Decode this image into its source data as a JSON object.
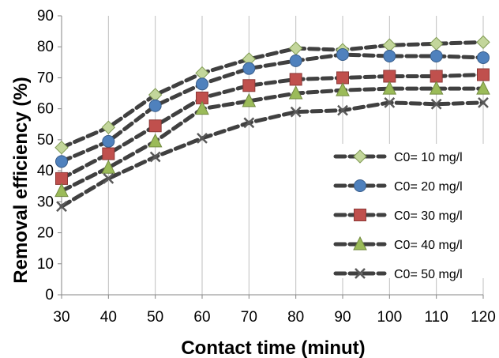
{
  "chart_data": {
    "type": "line",
    "xlabel": "Contact time (minut)",
    "ylabel": "Removal efficiency (%)",
    "x": [
      30,
      40,
      50,
      60,
      70,
      80,
      90,
      100,
      110,
      120
    ],
    "xlim": [
      30,
      120
    ],
    "ylim": [
      0,
      90
    ],
    "y_ticks": [
      0,
      10,
      20,
      30,
      40,
      50,
      60,
      70,
      80,
      90
    ],
    "grid": "vertical",
    "legend_position": "right",
    "series": [
      {
        "name": "C0= 10 mg/l",
        "marker": "diamond",
        "marker_color": "#c3d69b",
        "values": [
          47.5,
          54,
          64.5,
          71.5,
          76,
          79.5,
          79,
          80.5,
          81,
          81.5
        ]
      },
      {
        "name": "C0= 20 mg/l",
        "marker": "circle",
        "marker_color": "#4f81bd",
        "values": [
          43,
          49.5,
          61,
          68,
          73,
          75.5,
          77.5,
          77,
          77,
          76.5
        ]
      },
      {
        "name": "C0= 30 mg/l",
        "marker": "square",
        "marker_color": "#c0504d",
        "values": [
          37.5,
          45.5,
          54.5,
          63.5,
          67.5,
          69.5,
          70,
          70.5,
          70.5,
          71
        ]
      },
      {
        "name": "C0= 40 mg/l",
        "marker": "triangle",
        "marker_color": "#9bbb59",
        "values": [
          33.5,
          41,
          49.5,
          60,
          62.5,
          65,
          66,
          66.5,
          66.5,
          66.5
        ]
      },
      {
        "name": "C0= 50 mg/l",
        "marker": "x",
        "marker_color": "#595959",
        "values": [
          28.5,
          37.5,
          44.5,
          50.5,
          55.5,
          59,
          59.5,
          62,
          61.5,
          62
        ]
      }
    ],
    "line_color": "#404040"
  }
}
